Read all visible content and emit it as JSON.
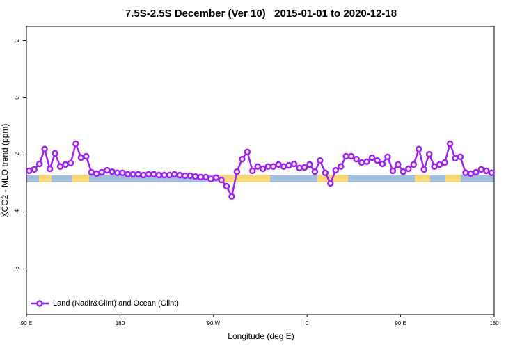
{
  "chart_data": {
    "type": "line",
    "title": "7.5S-2.5S December (Ver 10)   2015-01-01 to 2020-12-18",
    "xlabel": "Longitude (deg E)",
    "ylabel": "XCO2 - MLO trend (ppm)",
    "legend": "bottom-left",
    "xlim": [
      90,
      540
    ],
    "ylim": [
      -7.6,
      2.5
    ],
    "xticks": [
      {
        "value": 90,
        "label": "90 E"
      },
      180,
      {
        "value": 270,
        "label": "90 W"
      },
      {
        "value": 360,
        "label": "0"
      },
      {
        "value": 450,
        "label": "90 E"
      },
      {
        "value": 540,
        "label": "180"
      }
    ],
    "yticks": [
      2,
      0,
      -2,
      -4,
      -6
    ],
    "x": [
      92.5,
      97.5,
      102.5,
      107.5,
      112.5,
      117.5,
      122.5,
      127.5,
      132.5,
      137.5,
      142.5,
      147.5,
      152.5,
      157.5,
      162.5,
      167.5,
      172.5,
      177.5,
      182.5,
      187.5,
      192.5,
      197.5,
      202.5,
      207.5,
      212.5,
      217.5,
      222.5,
      227.5,
      232.5,
      237.5,
      242.5,
      247.5,
      252.5,
      257.5,
      262.5,
      267.5,
      272.5,
      277.5,
      282.5,
      287.5,
      292.5,
      297.5,
      302.5,
      307.5,
      312.5,
      317.5,
      322.5,
      327.5,
      332.5,
      337.5,
      342.5,
      347.5,
      352.5,
      357.5,
      362.5,
      367.5,
      372.5,
      377.5,
      382.5,
      387.5,
      392.5,
      397.5,
      402.5,
      407.5,
      412.5,
      417.5,
      422.5,
      427.5,
      432.5,
      437.5,
      442.5,
      447.5,
      452.5,
      457.5,
      462.5,
      467.5,
      472.5,
      477.5,
      482.5,
      487.5,
      492.5,
      497.5,
      502.5,
      507.5,
      512.5,
      517.5,
      522.5,
      527.5,
      532.5,
      537.5
    ],
    "series": [
      {
        "name": "Land (Nadir&Glint) and Ocean (Glint)",
        "color": "#a020f0",
        "values": [
          -2.56,
          -2.51,
          -2.32,
          -1.8,
          -2.49,
          -1.95,
          -2.41,
          -2.34,
          -2.29,
          -1.61,
          -2.1,
          -2.05,
          -2.61,
          -2.66,
          -2.61,
          -2.54,
          -2.59,
          -2.63,
          -2.63,
          -2.68,
          -2.68,
          -2.68,
          -2.71,
          -2.68,
          -2.68,
          -2.71,
          -2.71,
          -2.71,
          -2.68,
          -2.71,
          -2.73,
          -2.73,
          -2.76,
          -2.78,
          -2.78,
          -2.85,
          -2.8,
          -2.88,
          -3.1,
          -3.46,
          -2.59,
          -2.15,
          -1.9,
          -2.56,
          -2.41,
          -2.49,
          -2.41,
          -2.41,
          -2.34,
          -2.41,
          -2.37,
          -2.32,
          -2.46,
          -2.44,
          -2.34,
          -2.59,
          -2.2,
          -2.63,
          -3.0,
          -2.54,
          -2.41,
          -2.05,
          -2.05,
          -2.15,
          -2.27,
          -2.24,
          -2.1,
          -2.2,
          -2.32,
          -2.07,
          -2.56,
          -2.34,
          -2.59,
          -2.49,
          -2.34,
          -1.8,
          -2.51,
          -1.98,
          -2.41,
          -2.34,
          -2.27,
          -1.61,
          -2.12,
          -2.07,
          -2.63,
          -2.66,
          -2.61,
          -2.51,
          -2.56,
          -2.63
        ]
      }
    ]
  }
}
